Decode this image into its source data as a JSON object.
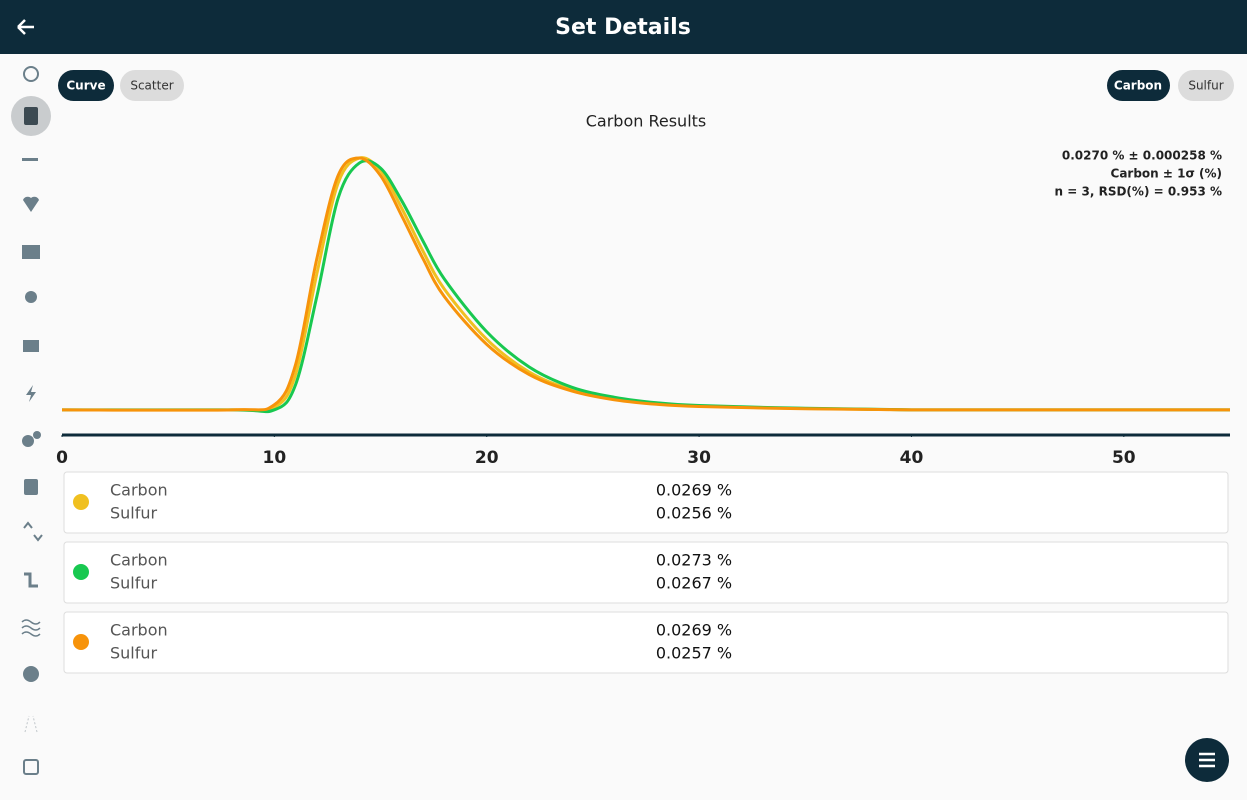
{
  "header": {
    "title": "Set Details"
  },
  "toggles": {
    "view": [
      "Curve",
      "Scatter"
    ],
    "element": [
      "Carbon",
      "Sulfur"
    ]
  },
  "chart_data": {
    "type": "line",
    "title": "Carbon Results",
    "stats": [
      "0.0270 % ± 0.000258 %",
      "Carbon ± 1σ (%)",
      "n = 3, RSD(%) = 0.953 %"
    ],
    "x": [
      0,
      8,
      10,
      11,
      12,
      13,
      14,
      15,
      16,
      17,
      18,
      20,
      22,
      24,
      26,
      28,
      30,
      35,
      40,
      45,
      50,
      55
    ],
    "series": [
      {
        "color": "#f0c020",
        "values": [
          0,
          0,
          0.01,
          0.14,
          0.54,
          0.9,
          1.0,
          0.95,
          0.8,
          0.63,
          0.48,
          0.28,
          0.15,
          0.08,
          0.045,
          0.025,
          0.015,
          0.005,
          0,
          0,
          0,
          0
        ]
      },
      {
        "color": "#18c850",
        "values": [
          0,
          0,
          0.0,
          0.1,
          0.45,
          0.84,
          0.98,
          0.96,
          0.83,
          0.67,
          0.52,
          0.31,
          0.17,
          0.09,
          0.05,
          0.028,
          0.017,
          0.006,
          0,
          0,
          0,
          0
        ]
      },
      {
        "color": "#f7930a",
        "values": [
          0,
          0,
          0.02,
          0.18,
          0.6,
          0.93,
          1.0,
          0.93,
          0.77,
          0.6,
          0.45,
          0.26,
          0.14,
          0.075,
          0.04,
          0.022,
          0.013,
          0.004,
          0,
          0,
          0,
          0
        ]
      }
    ],
    "xlim": [
      0,
      55
    ],
    "xticks": [
      0,
      10,
      20,
      30,
      40,
      50
    ],
    "ylim": [
      -0.1,
      1.0
    ]
  },
  "results": [
    {
      "color": "#f0c020",
      "lines": [
        {
          "label": "Carbon",
          "value": "0.0269 %"
        },
        {
          "label": "Sulfur",
          "value": "0.0256 %"
        }
      ]
    },
    {
      "color": "#18c850",
      "lines": [
        {
          "label": "Carbon",
          "value": "0.0273 %"
        },
        {
          "label": "Sulfur",
          "value": "0.0267 %"
        }
      ]
    },
    {
      "color": "#f7930a",
      "lines": [
        {
          "label": "Carbon",
          "value": "0.0269 %"
        },
        {
          "label": "Sulfur",
          "value": "0.0257 %"
        }
      ]
    }
  ]
}
